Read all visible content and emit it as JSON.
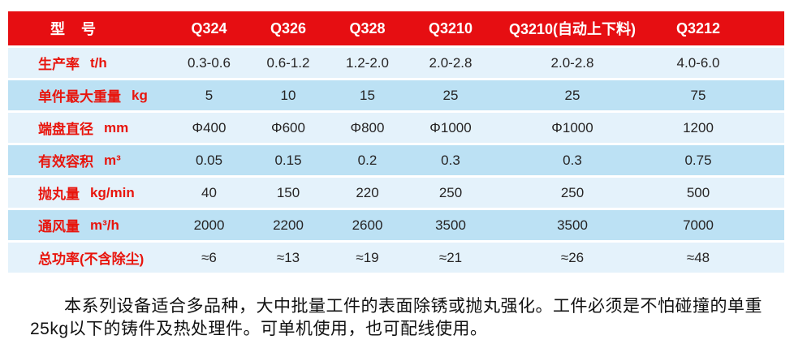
{
  "table": {
    "header": {
      "label": "型　号",
      "models": [
        "Q324",
        "Q326",
        "Q328",
        "Q3210",
        "Q3210(自动上下料)",
        "Q3212"
      ]
    },
    "rows": [
      {
        "label": "生产率",
        "unit": "t/h",
        "values": [
          "0.3-0.6",
          "0.6-1.2",
          "1.2-2.0",
          "2.0-2.8",
          "2.0-2.8",
          "4.0-6.0"
        ]
      },
      {
        "label": "单件最大重量",
        "unit": "kg",
        "values": [
          "5",
          "10",
          "15",
          "25",
          "25",
          "75"
        ]
      },
      {
        "label": "端盘直径",
        "unit": "mm",
        "values": [
          "Φ400",
          "Φ600",
          "Φ800",
          "Φ1000",
          "Φ1000",
          "1200"
        ]
      },
      {
        "label": "有效容积",
        "unit": "m³",
        "values": [
          "0.05",
          "0.15",
          "0.2",
          "0.3",
          "0.3",
          "0.75"
        ]
      },
      {
        "label": "抛丸量",
        "unit": "kg/min",
        "values": [
          "40",
          "150",
          "220",
          "250",
          "250",
          "500"
        ]
      },
      {
        "label": "通风量",
        "unit": "m³/h",
        "values": [
          "2000",
          "2200",
          "2600",
          "3500",
          "3500",
          "7000"
        ]
      },
      {
        "label": "总功率(不含除尘)",
        "unit": "",
        "values": [
          "≈6",
          "≈13",
          "≈19",
          "≈21",
          "≈26",
          "≈48"
        ]
      }
    ]
  },
  "description": {
    "line1": "本系列设备适合多品种，大中批量工件的表面除锈或抛丸强化。工件必须是不怕碰撞的单重",
    "line2": "25kg以下的铸件及热处理件。可单机使用，也可配线使用。"
  },
  "colors": {
    "header_bg": "#e60e12",
    "row_light": "#e4f2fb",
    "row_dark": "#bce1f4",
    "label_red": "#e8150d",
    "value_text": "#262424"
  }
}
